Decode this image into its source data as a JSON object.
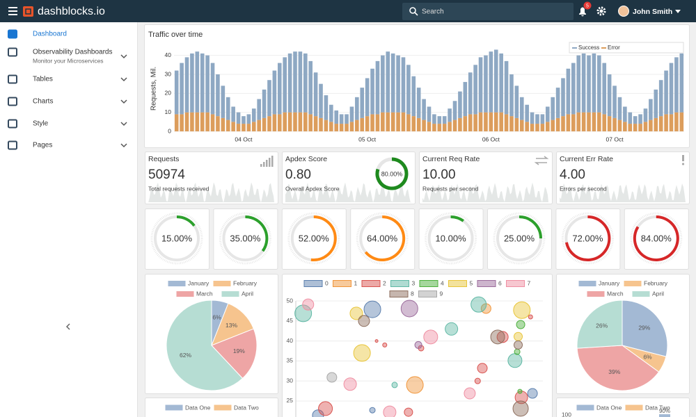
{
  "header": {
    "brand": "dashblocks.io",
    "search": "Search",
    "notifications": "5",
    "user": "John Smith"
  },
  "sidebar": {
    "items": [
      {
        "label": "Dashboard"
      },
      {
        "label": "Observability Dashboards",
        "sublabel": "Monitor your Microservices"
      },
      {
        "label": "Tables"
      },
      {
        "label": "Charts"
      },
      {
        "label": "Style"
      },
      {
        "label": "Pages"
      }
    ]
  },
  "cards": [
    {
      "title": "Requests",
      "value": "50974",
      "caption": "Total requests received"
    },
    {
      "title": "Apdex Score",
      "value": "0.80",
      "caption": "Overall Apdex Score"
    },
    {
      "title": "Current Req Rate",
      "value": "10.00",
      "caption": "Requests per second"
    },
    {
      "title": "Current Err Rate",
      "value": "4.00",
      "caption": "Errors per second"
    }
  ],
  "bottom": [
    {
      "legend": [
        "Data One",
        "Data Two"
      ]
    },
    {
      "legend": [
        "Data One",
        "Data Two"
      ],
      "tick": "100",
      "label": "90%"
    }
  ],
  "chart_data": [
    {
      "type": "bar",
      "title": "Traffic over time",
      "y_label": "Requests, Mil.",
      "stacked": true,
      "grid": true,
      "legend": "top-right",
      "categories": [
        null,
        null,
        null,
        null,
        null,
        null,
        null,
        null,
        null,
        null,
        null,
        null,
        null,
        "04 Oct",
        null,
        null,
        null,
        null,
        null,
        null,
        null,
        null,
        null,
        null,
        null,
        null,
        null,
        null,
        null,
        null,
        null,
        null,
        null,
        null,
        null,
        null,
        null,
        "05 Oct",
        null,
        null,
        null,
        null,
        null,
        null,
        null,
        null,
        null,
        null,
        null,
        null,
        null,
        null,
        null,
        null,
        null,
        null,
        null,
        null,
        null,
        null,
        null,
        "06 Oct",
        null,
        null,
        null,
        null,
        null,
        null,
        null,
        null,
        null,
        null,
        null,
        null,
        null,
        null,
        null,
        null,
        null,
        null,
        null,
        null,
        null,
        null,
        null,
        "07 Oct",
        null,
        null,
        null,
        null,
        null,
        null,
        null,
        null,
        null,
        null,
        null,
        null,
        null
      ],
      "series": [
        {
          "name": "Success",
          "color": "#8ea8c3",
          "values": [
            23,
            27,
            29,
            31,
            32,
            31,
            30,
            27,
            22,
            17,
            12,
            8,
            6,
            4,
            5,
            7,
            11,
            15,
            19,
            23,
            27,
            29,
            31,
            32,
            32,
            31,
            28,
            23,
            18,
            13,
            9,
            7,
            5,
            5,
            8,
            12,
            16,
            20,
            24,
            28,
            30,
            32,
            31,
            30,
            29,
            26,
            21,
            16,
            11,
            8,
            5,
            4,
            4,
            7,
            10,
            14,
            18,
            22,
            26,
            29,
            30,
            32,
            33,
            31,
            28,
            22,
            17,
            12,
            9,
            6,
            5,
            5,
            8,
            12,
            16,
            20,
            24,
            27,
            30,
            31,
            30,
            31,
            30,
            27,
            22,
            17,
            12,
            8,
            6,
            4,
            5,
            7,
            11,
            15,
            19,
            23,
            27,
            29,
            31
          ]
        },
        {
          "name": "Error",
          "color": "#dc9d5c",
          "values": [
            9,
            9,
            10,
            10,
            10,
            10,
            10,
            9,
            8,
            7,
            6,
            5,
            4,
            4,
            4,
            5,
            6,
            7,
            8,
            9,
            9,
            10,
            10,
            10,
            10,
            10,
            9,
            8,
            7,
            6,
            5,
            4,
            4,
            4,
            5,
            6,
            7,
            8,
            9,
            9,
            10,
            10,
            10,
            10,
            10,
            9,
            8,
            7,
            6,
            5,
            4,
            4,
            4,
            5,
            6,
            7,
            8,
            9,
            9,
            10,
            10,
            10,
            10,
            10,
            9,
            8,
            7,
            6,
            5,
            4,
            4,
            4,
            5,
            6,
            7,
            8,
            9,
            9,
            10,
            10,
            10,
            10,
            10,
            9,
            8,
            7,
            6,
            5,
            4,
            4,
            4,
            5,
            6,
            7,
            8,
            9,
            9,
            10,
            10
          ]
        }
      ],
      "ylim": [
        0,
        45
      ],
      "yticks": [
        0,
        10,
        20,
        30,
        40
      ]
    },
    {
      "type": "gauge",
      "values": [
        80
      ],
      "value_labels": [
        "80.00%"
      ],
      "color": "#1e8a1e"
    },
    {
      "type": "gauge",
      "values": [
        15
      ],
      "value_labels": [
        "15.00%"
      ],
      "color": "#2ca02c"
    },
    {
      "type": "gauge",
      "values": [
        35
      ],
      "value_labels": [
        "35.00%"
      ],
      "color": "#2ca02c"
    },
    {
      "type": "gauge",
      "values": [
        52
      ],
      "value_labels": [
        "52.00%"
      ],
      "color": "#ff8a14"
    },
    {
      "type": "gauge",
      "values": [
        64
      ],
      "value_labels": [
        "64.00%"
      ],
      "color": "#ff8a14"
    },
    {
      "type": "gauge",
      "values": [
        10
      ],
      "value_labels": [
        "10.00%"
      ],
      "color": "#2ca02c"
    },
    {
      "type": "gauge",
      "values": [
        25
      ],
      "value_labels": [
        "25.00%"
      ],
      "color": "#2ca02c"
    },
    {
      "type": "gauge",
      "values": [
        72
      ],
      "value_labels": [
        "72.00%"
      ],
      "color": "#d62728"
    },
    {
      "type": "gauge",
      "values": [
        84
      ],
      "value_labels": [
        "84.00%"
      ],
      "color": "#d62728"
    },
    {
      "type": "pie",
      "categories": [
        "January",
        "February",
        "March",
        "April"
      ],
      "values": [
        6,
        13,
        19,
        62
      ],
      "value_labels": [
        "6%",
        "13%",
        "19%",
        "62%"
      ],
      "colors": [
        "#a3b9d4",
        "#f6c48e",
        "#eea5a5",
        "#b6ddd3"
      ]
    },
    {
      "type": "bubble",
      "ylim": [
        21,
        50
      ],
      "yticks": [
        25,
        30,
        35,
        40,
        45,
        50
      ],
      "xlim": [
        0,
        100
      ],
      "grid": true,
      "series": [
        {
          "name": "0",
          "color": "#5b7fae",
          "x": [
            31,
            95.8,
            31,
            9
          ],
          "y": [
            47.9,
            26.9,
            22.7,
            21.4
          ],
          "size": [
            12,
            7,
            4,
            8
          ]
        },
        {
          "name": "1",
          "color": "#f0953a",
          "x": [
            77,
            48.2
          ],
          "y": [
            48.1,
            29
          ],
          "size": [
            7,
            12
          ]
        },
        {
          "name": "2",
          "color": "#d9534f",
          "x": [
            95,
            83.7,
            32.7,
            36,
            50.7,
            75.5,
            73.6,
            91.3,
            12,
            45.6
          ],
          "y": [
            46,
            41,
            40,
            39,
            38.2,
            33.2,
            30,
            25.9,
            23.1,
            22.2
          ],
          "size": [
            3,
            8,
            2,
            3,
            4,
            7,
            4,
            9,
            10,
            6
          ]
        },
        {
          "name": "3",
          "color": "#5fb8a5",
          "x": [
            3,
            74,
            63,
            88.7,
            40
          ],
          "y": [
            46.9,
            49.1,
            43,
            35.1,
            29
          ],
          "size": [
            12,
            11,
            9,
            10,
            4
          ]
        },
        {
          "name": "4",
          "color": "#4caf3c",
          "x": [
            91,
            89.6,
            90.7
          ],
          "y": [
            44.1,
            37.3,
            27.4
          ],
          "size": [
            6,
            4,
            3
          ]
        },
        {
          "name": "5",
          "color": "#e8c53a",
          "x": [
            24.5,
            91.5,
            90,
            26.8
          ],
          "y": [
            46.9,
            47.7,
            41.1,
            37
          ],
          "size": [
            9,
            12,
            6,
            12
          ]
        },
        {
          "name": "6",
          "color": "#9b6b9b",
          "x": [
            46,
            49.6
          ],
          "y": [
            48.1,
            39
          ],
          "size": [
            12,
            5
          ]
        },
        {
          "name": "7",
          "color": "#ef8fa2",
          "x": [
            5,
            54.6,
            22,
            70.4,
            38
          ],
          "y": [
            49.1,
            41,
            29.2,
            26.9,
            22.2
          ],
          "size": [
            8,
            10,
            9,
            8,
            9
          ]
        },
        {
          "name": "8",
          "color": "#8d6e5e",
          "x": [
            27.6,
            81.7,
            90,
            91
          ],
          "y": [
            45,
            41,
            39,
            23.1
          ],
          "size": [
            8,
            10,
            6,
            11
          ]
        },
        {
          "name": "9",
          "color": "#a8a8a8",
          "x": [
            14.6
          ],
          "y": [
            30.9
          ],
          "size": [
            7
          ]
        }
      ]
    },
    {
      "type": "pie",
      "categories": [
        "January",
        "February",
        "March",
        "April"
      ],
      "values": [
        29,
        6,
        39,
        26
      ],
      "value_labels": [
        "29%",
        "6%",
        "39%",
        "26%"
      ],
      "colors": [
        "#a3b9d4",
        "#f6c48e",
        "#eea5a5",
        "#b6ddd3"
      ]
    }
  ]
}
